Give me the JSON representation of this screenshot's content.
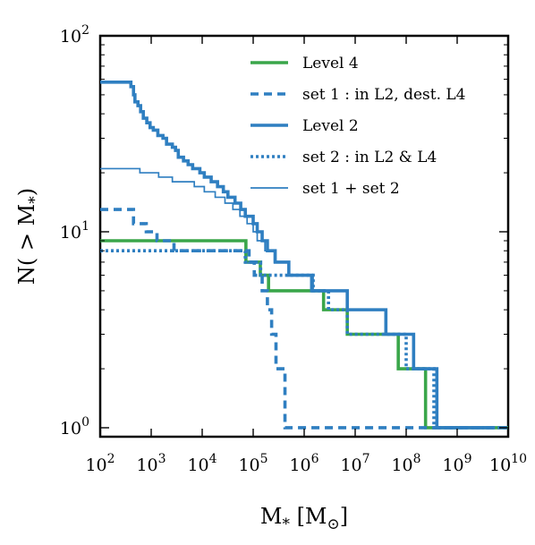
{
  "chart_data": {
    "type": "line",
    "xlabel": "M_* [M_⊙]",
    "ylabel": "N(> M_*)",
    "x_scale": "log",
    "y_scale": "log",
    "xlim": [
      100,
      10000000000
    ],
    "ylim": [
      0.9,
      100
    ],
    "grid": false,
    "legend_position": "top-right",
    "x_tick_labels": [
      {
        "value": 100,
        "base": "10",
        "exp": "2"
      },
      {
        "value": 1000,
        "base": "10",
        "exp": "3"
      },
      {
        "value": 10000,
        "base": "10",
        "exp": "4"
      },
      {
        "value": 100000,
        "base": "10",
        "exp": "5"
      },
      {
        "value": 1000000,
        "base": "10",
        "exp": "6"
      },
      {
        "value": 10000000,
        "base": "10",
        "exp": "7"
      },
      {
        "value": 100000000,
        "base": "10",
        "exp": "8"
      },
      {
        "value": 1000000000,
        "base": "10",
        "exp": "9"
      },
      {
        "value": 10000000000,
        "base": "10",
        "exp": "10"
      }
    ],
    "y_tick_labels": [
      {
        "value": 1,
        "base": "10",
        "exp": "0"
      },
      {
        "value": 10,
        "base": "10",
        "exp": "1"
      },
      {
        "value": 100,
        "base": "10",
        "exp": "2"
      }
    ],
    "series": [
      {
        "name": "Level 4",
        "color": "#3aa64a",
        "style": "solid",
        "width": "thick",
        "steps": [
          [
            100,
            9
          ],
          [
            72000,
            7
          ],
          [
            138000,
            6
          ],
          [
            200000,
            5
          ],
          [
            2400000,
            4
          ],
          [
            7000000,
            3
          ],
          [
            70000000,
            2
          ],
          [
            240000000,
            1
          ],
          [
            10000000000,
            1
          ]
        ]
      },
      {
        "name": "set 1 : in L2, dest. L4",
        "color": "#2f7fc1",
        "style": "dashed",
        "width": "thick",
        "steps": [
          [
            100,
            13
          ],
          [
            450,
            11
          ],
          [
            800,
            10
          ],
          [
            1300,
            9
          ],
          [
            2800,
            8
          ],
          [
            83000,
            7
          ],
          [
            105000,
            6
          ],
          [
            150000,
            5
          ],
          [
            190000,
            4
          ],
          [
            230000,
            3
          ],
          [
            280000,
            2
          ],
          [
            420000,
            1
          ],
          [
            10000000000,
            1
          ]
        ]
      },
      {
        "name": "Level 2",
        "color": "#2f7fc1",
        "style": "solid",
        "width": "thick",
        "steps": [
          [
            100,
            58
          ],
          [
            400,
            55
          ],
          [
            450,
            50
          ],
          [
            480,
            46
          ],
          [
            550,
            44
          ],
          [
            620,
            41
          ],
          [
            700,
            38
          ],
          [
            820,
            36
          ],
          [
            950,
            34
          ],
          [
            1100,
            33
          ],
          [
            1350,
            31
          ],
          [
            1700,
            30
          ],
          [
            2000,
            28
          ],
          [
            2600,
            27
          ],
          [
            3000,
            26
          ],
          [
            3400,
            24
          ],
          [
            4300,
            23
          ],
          [
            5300,
            22
          ],
          [
            6500,
            21
          ],
          [
            9000,
            20
          ],
          [
            11000,
            19
          ],
          [
            15000,
            18
          ],
          [
            20000,
            17
          ],
          [
            26000,
            16
          ],
          [
            32000,
            15
          ],
          [
            44000,
            14
          ],
          [
            57000,
            13
          ],
          [
            70000,
            12
          ],
          [
            100000,
            11
          ],
          [
            120000,
            10
          ],
          [
            150000,
            9
          ],
          [
            190000,
            8
          ],
          [
            270000,
            7
          ],
          [
            500000,
            6
          ],
          [
            1400000,
            5
          ],
          [
            7000000,
            4
          ],
          [
            40000000,
            3
          ],
          [
            140000000,
            2
          ],
          [
            400000000,
            1
          ],
          [
            5000000000,
            1
          ]
        ]
      },
      {
        "name": "set 2 : in L2 & L4",
        "color": "#2f7fc1",
        "style": "dotted",
        "width": "thick",
        "steps": [
          [
            100,
            8
          ],
          [
            70000,
            7
          ],
          [
            140000,
            6
          ],
          [
            1500000,
            5
          ],
          [
            3000000,
            4
          ],
          [
            7000000,
            3
          ],
          [
            100000000,
            2
          ],
          [
            350000000,
            1
          ],
          [
            10000000000,
            1
          ]
        ]
      },
      {
        "name": "set 1 + set 2",
        "color": "#2f7fc1",
        "style": "solid",
        "width": "thin",
        "steps": [
          [
            100,
            21
          ],
          [
            600,
            20
          ],
          [
            1400,
            19
          ],
          [
            2600,
            18
          ],
          [
            7000,
            17
          ],
          [
            11000,
            16
          ],
          [
            18000,
            15
          ],
          [
            28000,
            14
          ],
          [
            40000,
            13
          ],
          [
            55000,
            12
          ],
          [
            76000,
            11
          ],
          [
            100000,
            10
          ],
          [
            120000,
            9
          ],
          [
            170000,
            8
          ],
          [
            260000,
            7
          ],
          [
            500000,
            6
          ],
          [
            1500000,
            5
          ],
          [
            7000000,
            4
          ],
          [
            40000000,
            3
          ],
          [
            140000000,
            2
          ],
          [
            400000000,
            1
          ],
          [
            5000000000,
            1
          ]
        ]
      }
    ]
  }
}
